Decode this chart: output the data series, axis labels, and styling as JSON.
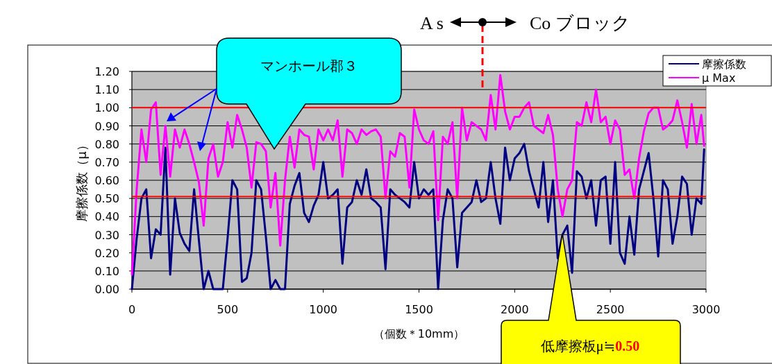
{
  "chart_data": {
    "type": "line",
    "ylabel": "摩擦係数（μ）",
    "xlabel": "（個数＊10mm）",
    "x": [
      0,
      25,
      50,
      75,
      100,
      125,
      150,
      175,
      200,
      225,
      250,
      275,
      300,
      325,
      350,
      375,
      400,
      425,
      450,
      475,
      500,
      525,
      550,
      575,
      600,
      625,
      650,
      675,
      700,
      725,
      750,
      775,
      800,
      825,
      850,
      875,
      900,
      925,
      950,
      975,
      1000,
      1025,
      1050,
      1075,
      1100,
      1125,
      1150,
      1175,
      1200,
      1225,
      1250,
      1275,
      1300,
      1325,
      1350,
      1375,
      1400,
      1425,
      1450,
      1475,
      1500,
      1525,
      1550,
      1575,
      1600,
      1625,
      1650,
      1675,
      1700,
      1725,
      1750,
      1775,
      1800,
      1825,
      1850,
      1875,
      1900,
      1925,
      1950,
      1975,
      2000,
      2025,
      2050,
      2075,
      2100,
      2125,
      2150,
      2175,
      2200,
      2225,
      2250,
      2275,
      2300,
      2325,
      2350,
      2375,
      2400,
      2425,
      2450,
      2475,
      2500,
      2525,
      2550,
      2575,
      2600,
      2625,
      2650,
      2675,
      2700,
      2725,
      2750,
      2775,
      2800,
      2825,
      2850,
      2875,
      2900,
      2925,
      2950,
      2975,
      2990
    ],
    "series": [
      {
        "name": "摩擦係数",
        "color": "#000080",
        "values": [
          0,
          0.28,
          0.5,
          0.55,
          0.17,
          0.33,
          0.3,
          0.78,
          0.08,
          0.5,
          0.31,
          0.25,
          0.21,
          0.55,
          0.27,
          0.0,
          0.1,
          0.0,
          0.0,
          0.0,
          0.28,
          0.6,
          0.55,
          0.04,
          0.06,
          0.2,
          0.6,
          0.55,
          0.29,
          0.0,
          0.05,
          0.0,
          0.0,
          0.47,
          0.57,
          0.64,
          0.42,
          0.37,
          0.46,
          0.52,
          0.7,
          0.5,
          0.52,
          0.55,
          0.14,
          0.45,
          0.48,
          0.6,
          0.52,
          0.66,
          0.5,
          0.48,
          0.45,
          0.11,
          0.55,
          0.52,
          0.5,
          0.48,
          0.45,
          0.7,
          0.5,
          0.55,
          0.52,
          0.55,
          0.0,
          0.38,
          0.55,
          0.5,
          0.12,
          0.42,
          0.45,
          0.48,
          0.6,
          0.48,
          0.5,
          0.7,
          0.5,
          0.36,
          0.78,
          0.6,
          0.72,
          0.75,
          0.8,
          0.65,
          0.55,
          0.45,
          0.7,
          0.37,
          0.6,
          0.17,
          0.3,
          0.35,
          0.09,
          0.65,
          0.62,
          0.5,
          0.6,
          0.35,
          0.6,
          0.62,
          0.25,
          0.7,
          0.2,
          0.14,
          0.4,
          0.19,
          0.55,
          0.65,
          0.75,
          0.5,
          0.18,
          0.6,
          0.55,
          0.25,
          0.4,
          0.62,
          0.58,
          0.3,
          0.5,
          0.47,
          0.77
        ]
      },
      {
        "name": "μ Max",
        "color": "#ff00ff",
        "values": [
          0.08,
          0.55,
          0.88,
          0.7,
          0.99,
          1.03,
          0.63,
          0.9,
          0.62,
          0.88,
          0.78,
          0.88,
          0.8,
          0.7,
          0.59,
          0.35,
          0.72,
          0.8,
          0.62,
          0.7,
          0.92,
          0.78,
          0.96,
          0.88,
          0.78,
          0.56,
          0.81,
          0.8,
          0.76,
          0.45,
          0.64,
          0.24,
          0.6,
          0.84,
          0.67,
          0.88,
          0.85,
          0.84,
          0.66,
          0.88,
          0.82,
          0.88,
          0.82,
          0.93,
          0.62,
          0.88,
          0.86,
          0.8,
          0.88,
          0.85,
          0.87,
          0.88,
          0.84,
          0.5,
          0.76,
          0.73,
          0.86,
          0.84,
          0.56,
          0.99,
          0.88,
          0.82,
          0.8,
          0.87,
          0.38,
          0.84,
          0.8,
          0.92,
          0.5,
          1.0,
          0.82,
          0.92,
          0.9,
          0.88,
          0.82,
          1.07,
          0.88,
          1.18,
          0.98,
          0.88,
          0.95,
          0.95,
          1.0,
          1.03,
          0.9,
          0.88,
          0.86,
          0.96,
          0.85,
          0.55,
          0.4,
          0.55,
          0.6,
          0.92,
          0.9,
          1.03,
          0.92,
          1.1,
          0.92,
          0.95,
          0.8,
          0.93,
          0.88,
          0.63,
          0.66,
          0.5,
          0.72,
          0.87,
          0.97,
          1.0,
          1.0,
          0.88,
          0.9,
          0.93,
          1.04,
          0.92,
          0.78,
          1.02,
          0.8,
          0.96,
          0.79
        ]
      }
    ],
    "xlim": [
      0,
      3000
    ],
    "xticks": [
      0,
      500,
      1000,
      1500,
      2000,
      2500,
      3000
    ],
    "ylim": [
      0,
      1.2
    ],
    "yticks": [
      {
        "value": 0,
        "label": "0.00"
      },
      {
        "value": 0.1,
        "label": "0.10"
      },
      {
        "value": 0.2,
        "label": "0.20"
      },
      {
        "value": 0.3,
        "label": "0.30"
      },
      {
        "value": 0.4,
        "label": "0.40"
      },
      {
        "value": 0.5,
        "label": "0.50"
      },
      {
        "value": 0.6,
        "label": "0.60"
      },
      {
        "value": 0.7,
        "label": "0.70"
      },
      {
        "value": 0.8,
        "label": "0.80"
      },
      {
        "value": 0.9,
        "label": "0.90"
      },
      {
        "value": 1.0,
        "label": "1.00"
      },
      {
        "value": 1.1,
        "label": "1.10"
      },
      {
        "value": 1.2,
        "label": "1.20"
      }
    ],
    "grid": "y",
    "legend": "top right",
    "ref_lines": [
      {
        "axis": "y",
        "value": 1.0,
        "color": "#ff0000"
      },
      {
        "axis": "y",
        "value": 0.51,
        "color": "#ff0000"
      }
    ],
    "annotations": [
      "マンホール郡３",
      "低摩擦板μ≒0.50",
      "A s",
      "Co ブロック"
    ]
  }
}
